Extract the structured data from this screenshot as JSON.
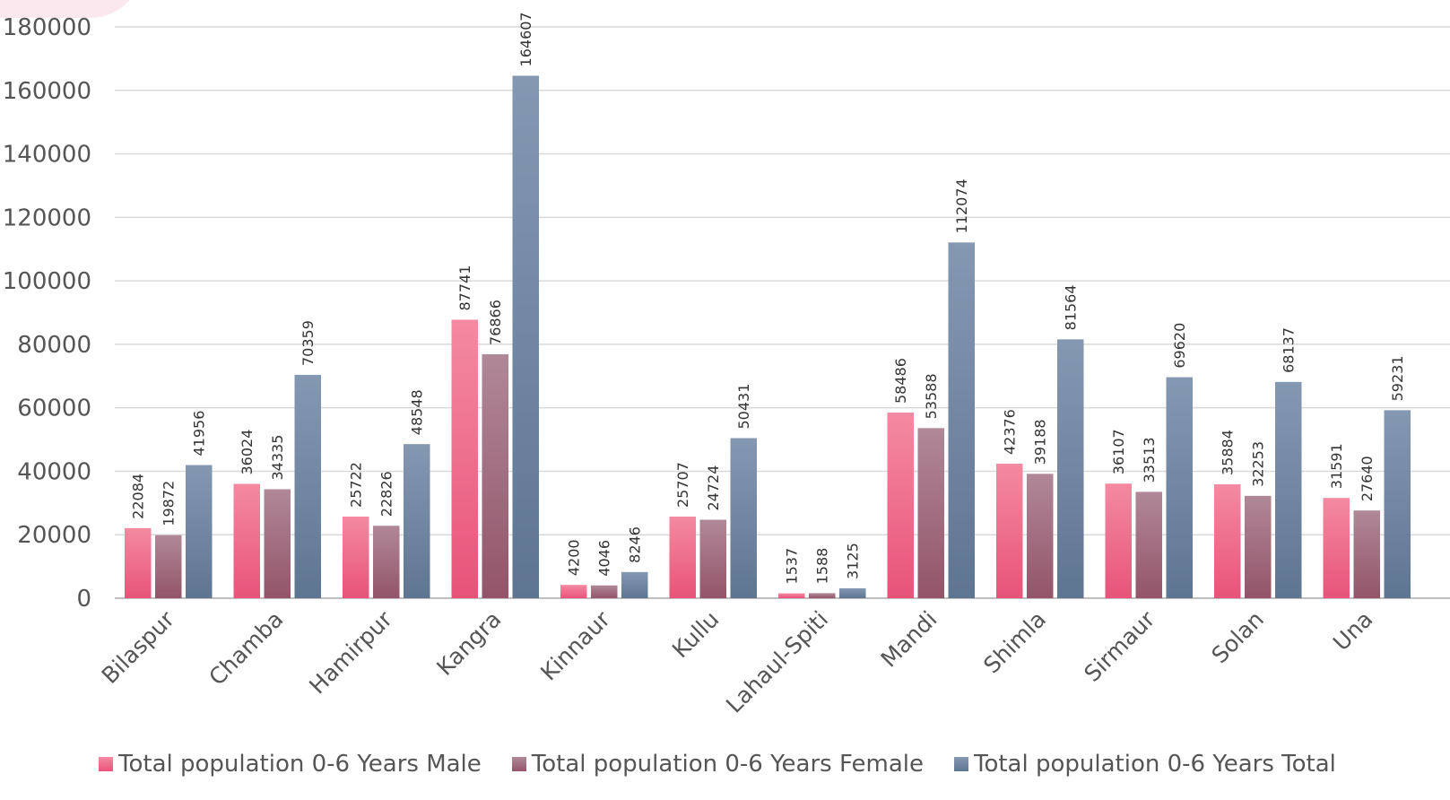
{
  "chart_data": {
    "type": "bar",
    "title": "",
    "xlabel": "",
    "ylabel": "",
    "ylim": [
      0,
      180000
    ],
    "yticks": [
      0,
      20000,
      40000,
      60000,
      80000,
      100000,
      120000,
      140000,
      160000,
      180000
    ],
    "grid": true,
    "legend_position": "bottom",
    "categories": [
      "Bilaspur",
      "Chamba",
      "Hamirpur",
      "Kangra",
      "Kinnaur",
      "Kullu",
      "Lahaul-Spiti",
      "Mandi",
      "Shimla",
      "Sirmaur",
      "Solan",
      "Una"
    ],
    "series": [
      {
        "name": "Total population 0-6 Years Male",
        "color_top": "#f48aa2",
        "color_bottom": "#e8537a",
        "values": [
          22084,
          36024,
          25722,
          87741,
          4200,
          25707,
          1537,
          58486,
          42376,
          36107,
          35884,
          31591
        ]
      },
      {
        "name": "Total population 0-6 Years Female",
        "color_top": "#b08898",
        "color_bottom": "#935469",
        "values": [
          19872,
          34335,
          22826,
          76866,
          4046,
          24724,
          1588,
          53588,
          39188,
          33513,
          32253,
          27640
        ]
      },
      {
        "name": "Total population 0-6 Years Total",
        "color_top": "#8598b2",
        "color_bottom": "#5e7592",
        "values": [
          41956,
          70359,
          48548,
          164607,
          8246,
          50431,
          3125,
          112074,
          81564,
          69620,
          68137,
          59231
        ]
      }
    ]
  }
}
